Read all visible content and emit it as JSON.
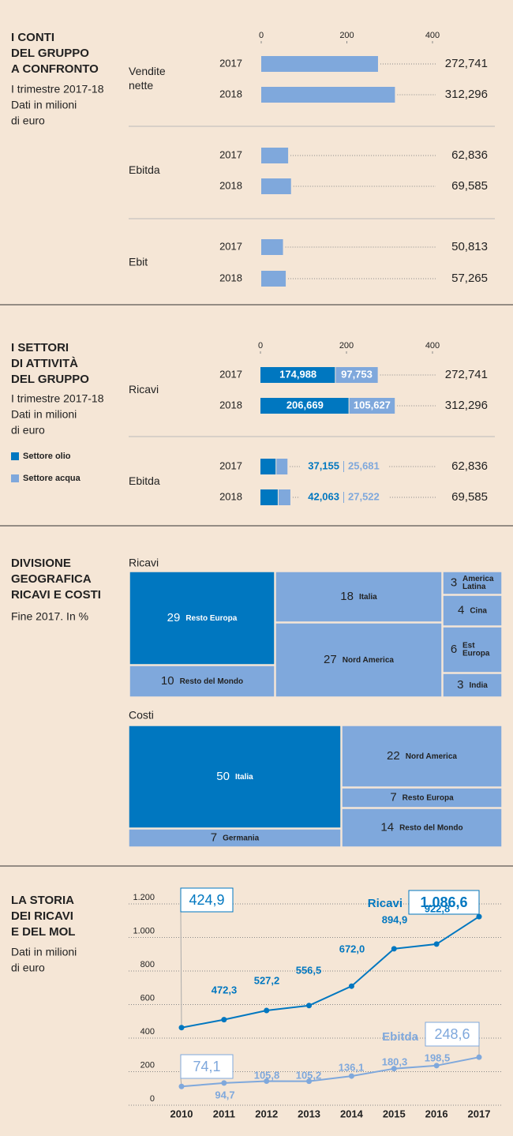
{
  "chart_data": [
    {
      "type": "bar",
      "title": [
        "I CONTI",
        "DEL GRUPPO",
        "A CONFRONTO"
      ],
      "subtitle": [
        "I trimestre 2017-18",
        "Dati in milioni",
        "di euro"
      ],
      "xlim": [
        0,
        400
      ],
      "xticks": [
        0,
        200,
        400
      ],
      "color": "#7fa8dc",
      "groups": [
        {
          "name": [
            "Vendite",
            "nette"
          ],
          "categories": [
            "2017",
            "2018"
          ],
          "values": [
            272.741,
            312.296
          ],
          "value_labels": [
            "272,741",
            "312,296"
          ]
        },
        {
          "name": [
            "Ebitda"
          ],
          "categories": [
            "2017",
            "2018"
          ],
          "values": [
            62.836,
            69.585
          ],
          "value_labels": [
            "62,836",
            "69,585"
          ]
        },
        {
          "name": [
            "Ebit"
          ],
          "categories": [
            "2017",
            "2018"
          ],
          "values": [
            50.813,
            57.265
          ],
          "value_labels": [
            "50,813",
            "57,265"
          ]
        }
      ]
    },
    {
      "type": "stacked_bar",
      "title": [
        "I SETTORI",
        "DI ATTIVITÀ",
        "DEL GRUPPO"
      ],
      "subtitle": [
        "I trimestre 2017-18",
        "Dati in milioni",
        "di euro"
      ],
      "xlim": [
        0,
        400
      ],
      "xticks": [
        0,
        200,
        400
      ],
      "series": [
        {
          "name": "Settore olio",
          "color": "#0077c0"
        },
        {
          "name": "Settore acqua",
          "color": "#7fa8dc"
        }
      ],
      "groups": [
        {
          "name": "Ricavi",
          "categories": [
            "2017",
            "2018"
          ],
          "values": [
            [
              174.988,
              97.753
            ],
            [
              206.669,
              105.627
            ]
          ],
          "value_labels": [
            [
              "174,988",
              "97,753"
            ],
            [
              "206,669",
              "105,627"
            ]
          ],
          "totals": [
            272.741,
            312.296
          ],
          "total_labels": [
            "272,741",
            "312,296"
          ]
        },
        {
          "name": "Ebitda",
          "categories": [
            "2017",
            "2018"
          ],
          "values": [
            [
              37.155,
              25.681
            ],
            [
              42.063,
              27.522
            ]
          ],
          "value_labels": [
            [
              "37,155",
              "25,681"
            ],
            [
              "42,063",
              "27,522"
            ]
          ],
          "totals": [
            62.836,
            69.585
          ],
          "total_labels": [
            "62,836",
            "69,585"
          ]
        }
      ]
    },
    {
      "type": "treemap",
      "title": [
        "DIVISIONE",
        "GEOGRAFICA",
        "RICAVI E COSTI"
      ],
      "subtitle": [
        "Fine 2017. In %"
      ],
      "maps": [
        {
          "name": "Ricavi",
          "items": [
            {
              "label": [
                "Resto Europa"
              ],
              "value": 29,
              "color": "#0077c0"
            },
            {
              "label": [
                "Resto del Mondo"
              ],
              "value": 10,
              "color": "#7fa8dc"
            },
            {
              "label": [
                "Italia"
              ],
              "value": 18,
              "color": "#7fa8dc"
            },
            {
              "label": [
                "Nord America"
              ],
              "value": 27,
              "color": "#7fa8dc"
            },
            {
              "label": [
                "America",
                "Latina"
              ],
              "value": 3,
              "color": "#7fa8dc"
            },
            {
              "label": [
                "Cina"
              ],
              "value": 4,
              "color": "#7fa8dc"
            },
            {
              "label": [
                "Est",
                "Europa"
              ],
              "value": 6,
              "color": "#7fa8dc"
            },
            {
              "label": [
                "India"
              ],
              "value": 3,
              "color": "#7fa8dc"
            }
          ]
        },
        {
          "name": "Costi",
          "items": [
            {
              "label": [
                "Italia"
              ],
              "value": 50,
              "color": "#0077c0"
            },
            {
              "label": [
                "Germania"
              ],
              "value": 7,
              "color": "#7fa8dc"
            },
            {
              "label": [
                "Nord America"
              ],
              "value": 22,
              "color": "#7fa8dc"
            },
            {
              "label": [
                "Resto Europa"
              ],
              "value": 7,
              "color": "#7fa8dc"
            },
            {
              "label": [
                "Resto del Mondo"
              ],
              "value": 14,
              "color": "#7fa8dc"
            }
          ]
        }
      ]
    },
    {
      "type": "line",
      "title": [
        "LA STORIA",
        "DEI RICAVI",
        "E DEL MOL"
      ],
      "subtitle": [
        "Dati in milioni",
        "di euro"
      ],
      "categories": [
        "2010",
        "2011",
        "2012",
        "2013",
        "2014",
        "2015",
        "2016",
        "2017"
      ],
      "ylim": [
        0,
        1200
      ],
      "yticks": [
        0,
        200,
        400,
        600,
        800,
        {
          "value": 1000,
          "label": "1.000"
        },
        {
          "value": 1200,
          "label": "1.200"
        }
      ],
      "grid": true,
      "series": [
        {
          "name": "Ricavi",
          "color": "#0077c0",
          "values": [
            424.9,
            472.3,
            527.2,
            556.5,
            672.0,
            894.9,
            922.8,
            1086.6
          ],
          "value_labels": [
            "424,9",
            "472,3",
            "527,2",
            "556,5",
            "672,0",
            "894,9",
            "922,8",
            "1.086,6"
          ]
        },
        {
          "name": "Ebitda",
          "color": "#7fa8dc",
          "values": [
            74.1,
            94.7,
            105.8,
            105.2,
            136.1,
            180.3,
            198.5,
            248.6
          ],
          "value_labels": [
            "74,1",
            "94,7",
            "105,8",
            "105,2",
            "136,1",
            "180,3",
            "198,5",
            "248,6"
          ]
        }
      ]
    }
  ]
}
